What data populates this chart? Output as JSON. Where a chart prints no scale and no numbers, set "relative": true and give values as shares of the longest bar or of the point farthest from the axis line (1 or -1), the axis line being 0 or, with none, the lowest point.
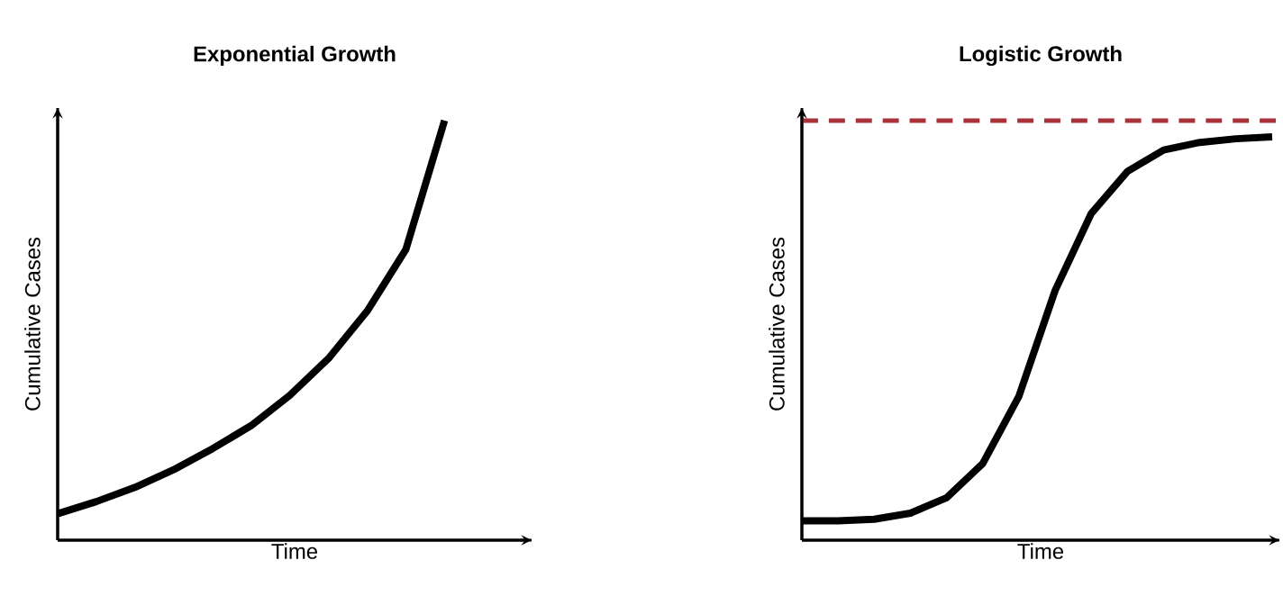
{
  "chart_data": [
    {
      "type": "line",
      "title": "Exponential Growth",
      "xlabel": "Time",
      "ylabel": "Cumulative Cases",
      "relative": true,
      "tick_labels": false,
      "categories": [
        null,
        null,
        null,
        null,
        null,
        null,
        null,
        null,
        null,
        null,
        null,
        null,
        null
      ],
      "series": [
        {
          "color": "#000000",
          "values": [
            0.063,
            0.092,
            0.126,
            0.168,
            0.218,
            0.273,
            0.345,
            0.433,
            0.546,
            0.693,
            1.0,
            null,
            null
          ]
        }
      ]
    },
    {
      "type": "line",
      "title": "Logistic Growth",
      "xlabel": "Time",
      "ylabel": "Cumulative Cases",
      "relative": true,
      "tick_labels": false,
      "categories": [
        null,
        null,
        null,
        null,
        null,
        null,
        null,
        null,
        null,
        null,
        null,
        null,
        null,
        null
      ],
      "series": [
        {
          "color": "#000000",
          "values": [
            0.048,
            0.048,
            0.052,
            0.067,
            0.105,
            0.19,
            0.357,
            0.619,
            0.81,
            0.914,
            0.967,
            0.986,
            0.995,
            1.0
          ]
        }
      ],
      "ref_lines": [
        {
          "axis": "y",
          "value": 1.04,
          "color": "#a83238",
          "line_style": "dashed"
        }
      ]
    }
  ]
}
